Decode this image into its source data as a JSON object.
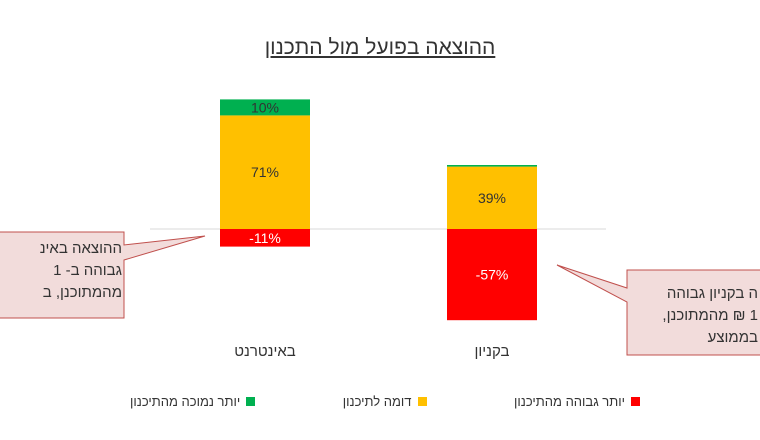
{
  "colors": {
    "above_plan": "#ff0000",
    "similar": "#ffc000",
    "below_plan": "#00b050",
    "callout_fill": "#f2dcdb",
    "callout_stroke": "#c0504d",
    "axis": "#d9d9d9",
    "label_dark": "#333333",
    "label_light": "#ffffff"
  },
  "chart_data": {
    "type": "bar",
    "stacked": true,
    "title": "ההוצאה בפועל מול התכנון",
    "categories": [
      "באינטרנט",
      "בקניון"
    ],
    "series": [
      {
        "name": "יותר גבוהה מהתיכנון",
        "color": "#ff0000",
        "values": [
          -11,
          -57
        ],
        "labels": [
          "-11%",
          "-57%"
        ]
      },
      {
        "name": "דומה לתיכנון",
        "color": "#ffc000",
        "values": [
          71,
          39
        ],
        "labels": [
          "71%",
          "39%"
        ]
      },
      {
        "name": "יותר נמוכה מהתיכנון",
        "color": "#00b050",
        "values": [
          10,
          1
        ],
        "labels": [
          "10%",
          ""
        ]
      }
    ],
    "ylim": [
      -80,
      130
    ],
    "grid": false,
    "legend_position": "bottom",
    "annotations": [
      {
        "id": "internet",
        "lines": [
          "ההוצאה באינ",
          "גבוהה ב- 1",
          "מהמתוכנן, ב"
        ]
      },
      {
        "id": "mall",
        "lines": [
          "ה בקניון גבוהה",
          "1 ₪ מהמתוכנן,",
          "בממוצע"
        ]
      }
    ]
  }
}
